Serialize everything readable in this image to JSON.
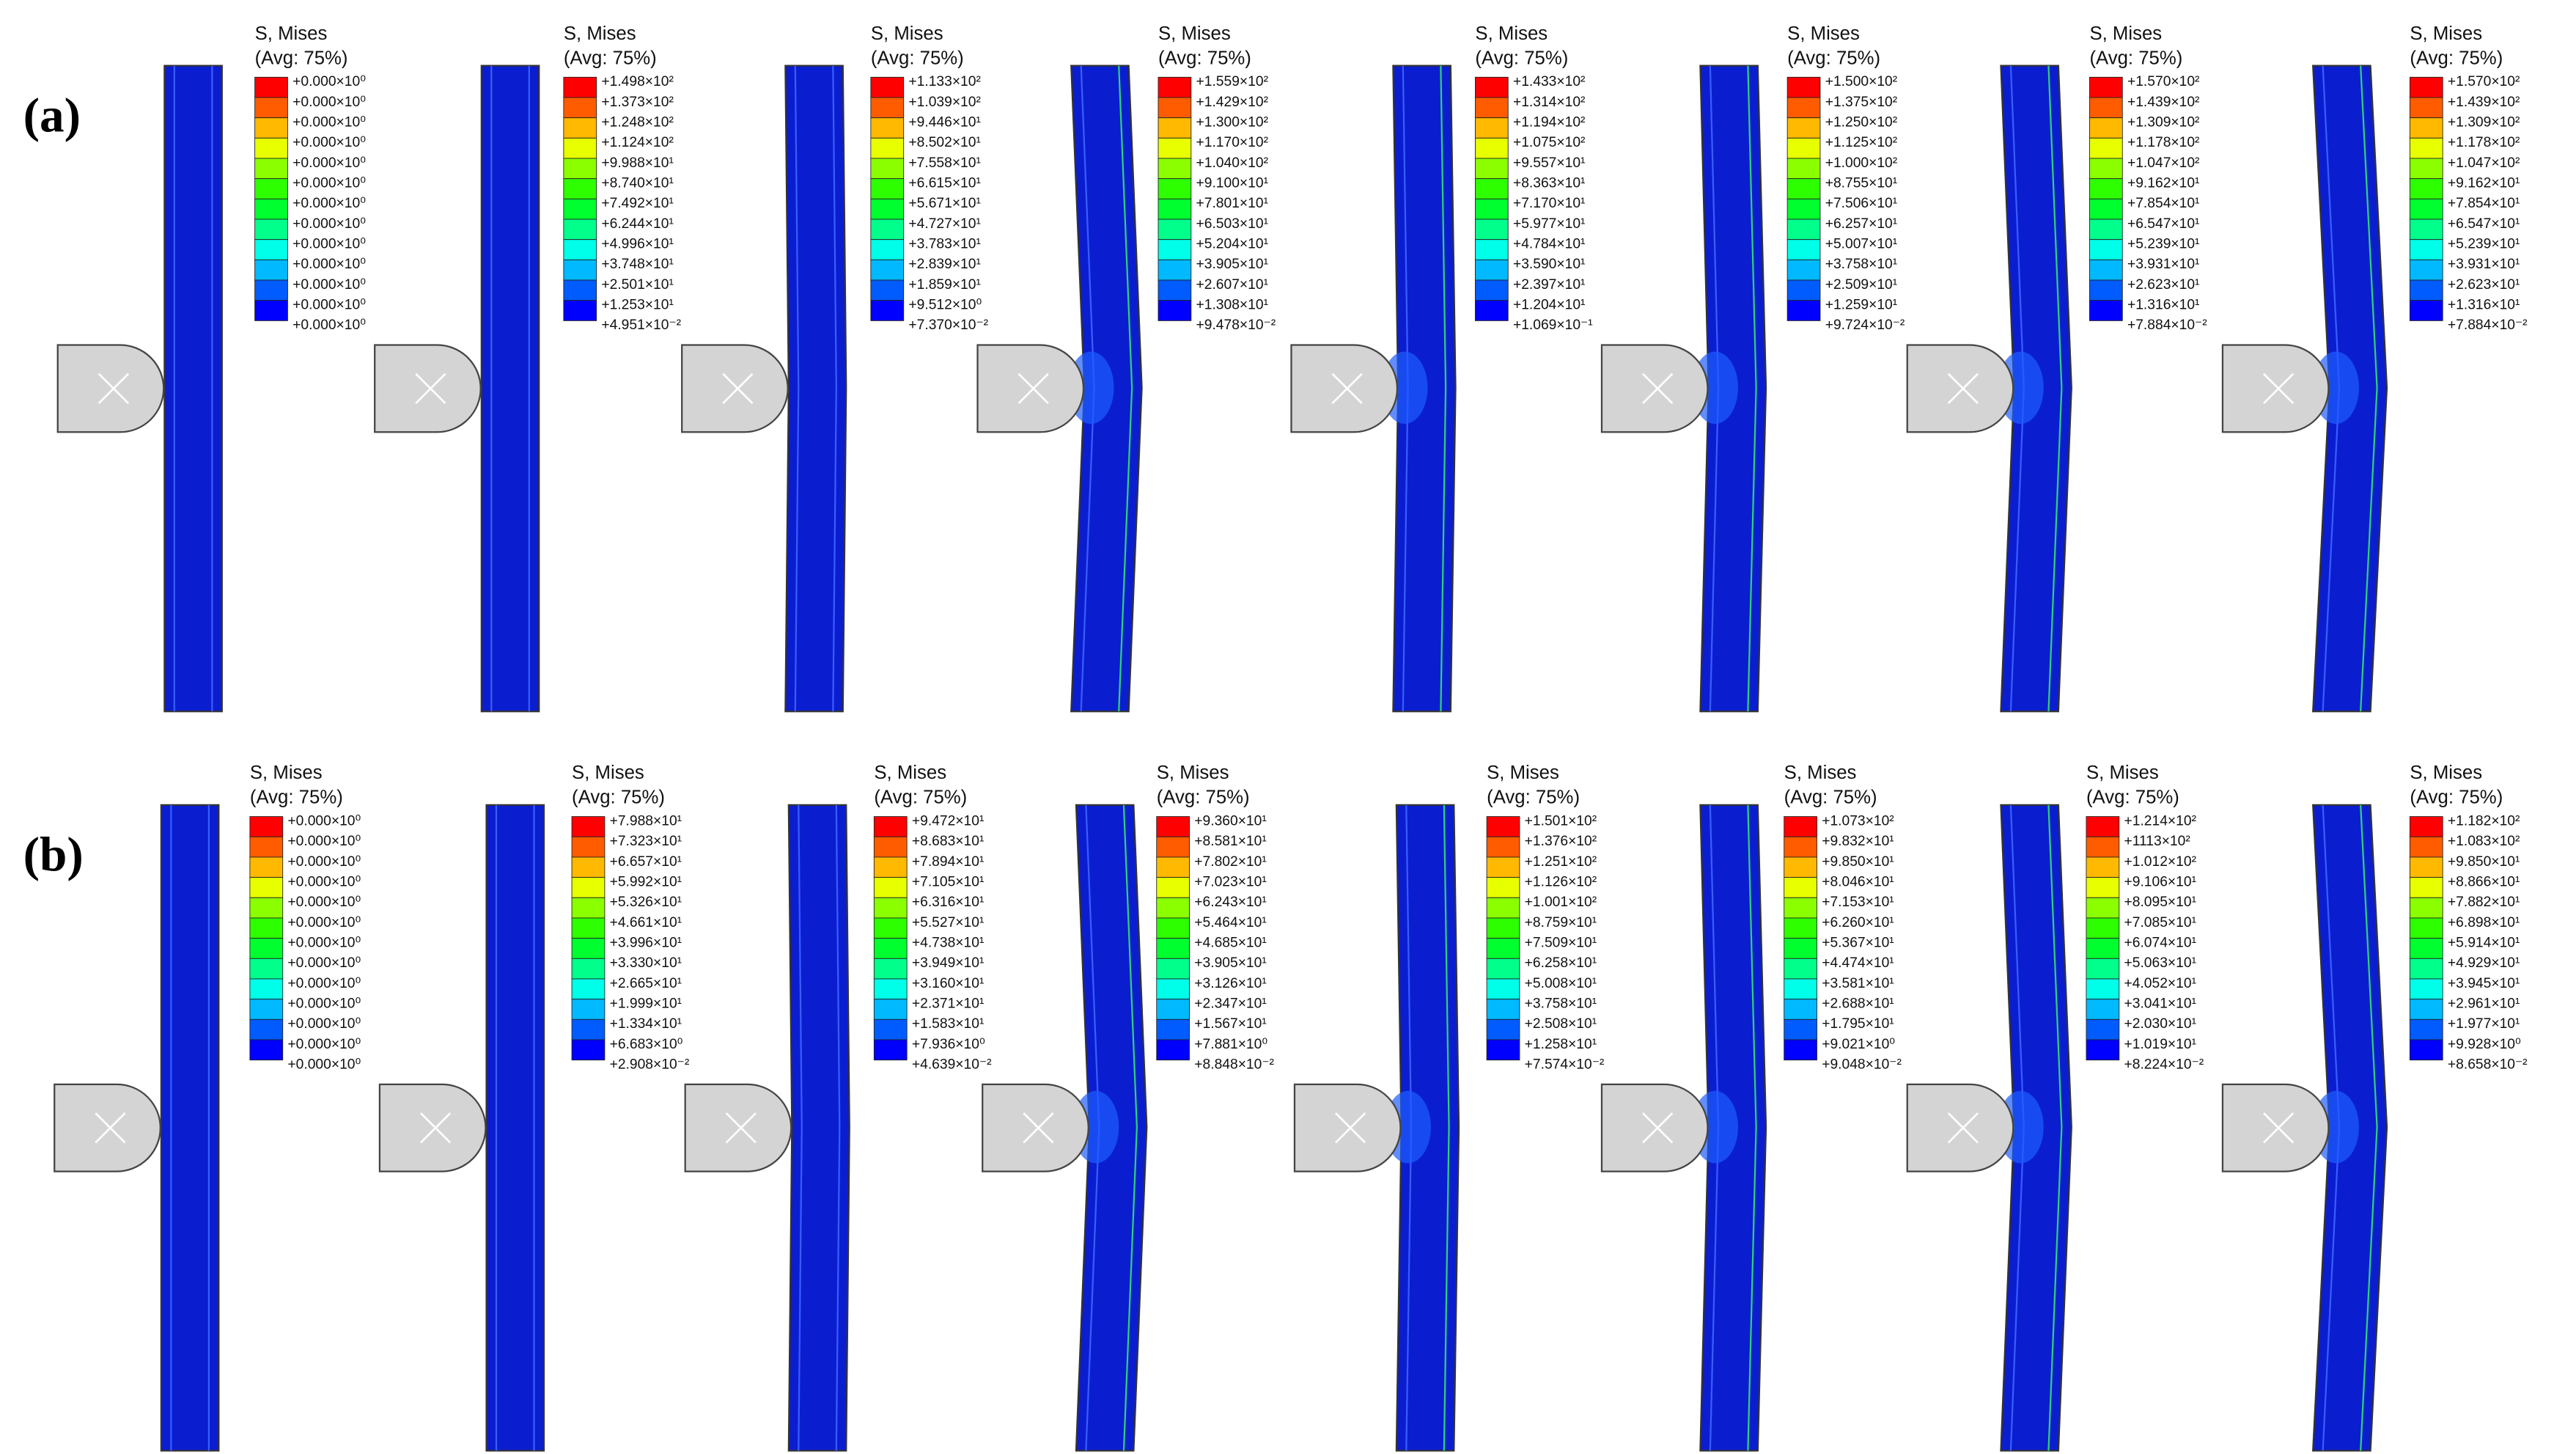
{
  "panels": [
    {
      "label": "(a)",
      "frames": [
        {
          "title": "S, Mises",
          "subtitle": "(Avg: 75%)",
          "values": [
            "+0.000×10⁰",
            "+0.000×10⁰",
            "+0.000×10⁰",
            "+0.000×10⁰",
            "+0.000×10⁰",
            "+0.000×10⁰",
            "+0.000×10⁰",
            "+0.000×10⁰",
            "+0.000×10⁰",
            "+0.000×10⁰",
            "+0.000×10⁰",
            "+0.000×10⁰",
            "+0.000×10⁰"
          ]
        },
        {
          "title": "S, Mises",
          "subtitle": "(Avg: 75%)",
          "values": [
            "+1.498×10²",
            "+1.373×10²",
            "+1.248×10²",
            "+1.124×10²",
            "+9.988×10¹",
            "+8.740×10¹",
            "+7.492×10¹",
            "+6.244×10¹",
            "+4.996×10¹",
            "+3.748×10¹",
            "+2.501×10¹",
            "+1.253×10¹",
            "+4.951×10⁻²"
          ]
        },
        {
          "title": "S, Mises",
          "subtitle": "(Avg: 75%)",
          "values": [
            "+1.133×10²",
            "+1.039×10²",
            "+9.446×10¹",
            "+8.502×10¹",
            "+7.558×10¹",
            "+6.615×10¹",
            "+5.671×10¹",
            "+4.727×10¹",
            "+3.783×10¹",
            "+2.839×10¹",
            "+1.859×10¹",
            "+9.512×10⁰",
            "+7.370×10⁻²"
          ]
        },
        {
          "title": "S, Mises",
          "subtitle": "(Avg: 75%)",
          "values": [
            "+1.559×10²",
            "+1.429×10²",
            "+1.300×10²",
            "+1.170×10²",
            "+1.040×10²",
            "+9.100×10¹",
            "+7.801×10¹",
            "+6.503×10¹",
            "+5.204×10¹",
            "+3.905×10¹",
            "+2.607×10¹",
            "+1.308×10¹",
            "+9.478×10⁻²"
          ]
        },
        {
          "title": "S, Mises",
          "subtitle": "(Avg: 75%)",
          "values": [
            "+1.433×10²",
            "+1.314×10²",
            "+1.194×10²",
            "+1.075×10²",
            "+9.557×10¹",
            "+8.363×10¹",
            "+7.170×10¹",
            "+5.977×10¹",
            "+4.784×10¹",
            "+3.590×10¹",
            "+2.397×10¹",
            "+1.204×10¹",
            "+1.069×10⁻¹"
          ]
        },
        {
          "title": "S, Mises",
          "subtitle": "(Avg: 75%)",
          "values": [
            "+1.500×10²",
            "+1.375×10²",
            "+1.250×10²",
            "+1.125×10²",
            "+1.000×10²",
            "+8.755×10¹",
            "+7.506×10¹",
            "+6.257×10¹",
            "+5.007×10¹",
            "+3.758×10¹",
            "+2.509×10¹",
            "+1.259×10¹",
            "+9.724×10⁻²"
          ]
        },
        {
          "title": "S, Mises",
          "subtitle": "(Avg: 75%)",
          "values": [
            "+1.570×10²",
            "+1.439×10²",
            "+1.309×10²",
            "+1.178×10²",
            "+1.047×10²",
            "+9.162×10¹",
            "+7.854×10¹",
            "+6.547×10¹",
            "+5.239×10¹",
            "+3.931×10¹",
            "+2.623×10¹",
            "+1.316×10¹",
            "+7.884×10⁻²"
          ]
        },
        {
          "title": "S, Mises",
          "subtitle": "(Avg: 75%)",
          "values": [
            "+1.570×10²",
            "+1.439×10²",
            "+1.309×10²",
            "+1.178×10²",
            "+1.047×10²",
            "+9.162×10¹",
            "+7.854×10¹",
            "+6.547×10¹",
            "+5.239×10¹",
            "+3.931×10¹",
            "+2.623×10¹",
            "+1.316×10¹",
            "+7.884×10⁻²"
          ]
        }
      ]
    },
    {
      "label": "(b)",
      "frames": [
        {
          "title": "S, Mises",
          "subtitle": "(Avg: 75%)",
          "values": [
            "+0.000×10⁰",
            "+0.000×10⁰",
            "+0.000×10⁰",
            "+0.000×10⁰",
            "+0.000×10⁰",
            "+0.000×10⁰",
            "+0.000×10⁰",
            "+0.000×10⁰",
            "+0.000×10⁰",
            "+0.000×10⁰",
            "+0.000×10⁰",
            "+0.000×10⁰",
            "+0.000×10⁰"
          ]
        },
        {
          "title": "S, Mises",
          "subtitle": "(Avg: 75%)",
          "values": [
            "+7.988×10¹",
            "+7.323×10¹",
            "+6.657×10¹",
            "+5.992×10¹",
            "+5.326×10¹",
            "+4.661×10¹",
            "+3.996×10¹",
            "+3.330×10¹",
            "+2.665×10¹",
            "+1.999×10¹",
            "+1.334×10¹",
            "+6.683×10⁰",
            "+2.908×10⁻²"
          ]
        },
        {
          "title": "S, Mises",
          "subtitle": "(Avg: 75%)",
          "values": [
            "+9.472×10¹",
            "+8.683×10¹",
            "+7.894×10¹",
            "+7.105×10¹",
            "+6.316×10¹",
            "+5.527×10¹",
            "+4.738×10¹",
            "+3.949×10¹",
            "+3.160×10¹",
            "+2.371×10¹",
            "+1.583×10¹",
            "+7.936×10⁰",
            "+4.639×10⁻²"
          ]
        },
        {
          "title": "S, Mises",
          "subtitle": "(Avg: 75%)",
          "values": [
            "+9.360×10¹",
            "+8.581×10¹",
            "+7.802×10¹",
            "+7.023×10¹",
            "+6.243×10¹",
            "+5.464×10¹",
            "+4.685×10¹",
            "+3.905×10¹",
            "+3.126×10¹",
            "+2.347×10¹",
            "+1.567×10¹",
            "+7.881×10⁰",
            "+8.848×10⁻²"
          ]
        },
        {
          "title": "S, Mises",
          "subtitle": "(Avg: 75%)",
          "values": [
            "+1.501×10²",
            "+1.376×10²",
            "+1.251×10²",
            "+1.126×10²",
            "+1.001×10²",
            "+8.759×10¹",
            "+7.509×10¹",
            "+6.258×10¹",
            "+5.008×10¹",
            "+3.758×10¹",
            "+2.508×10¹",
            "+1.258×10¹",
            "+7.574×10⁻²"
          ]
        },
        {
          "title": "S, Mises",
          "subtitle": "(Avg: 75%)",
          "values": [
            "+1.073×10²",
            "+9.832×10¹",
            "+9.850×10¹",
            "+8.046×10¹",
            "+7.153×10¹",
            "+6.260×10¹",
            "+5.367×10¹",
            "+4.474×10¹",
            "+3.581×10¹",
            "+2.688×10¹",
            "+1.795×10¹",
            "+9.021×10⁰",
            "+9.048×10⁻²"
          ]
        },
        {
          "title": "S, Mises",
          "subtitle": "(Avg: 75%)",
          "values": [
            "+1.214×10²",
            "+1113×10²",
            "+1.012×10²",
            "+9.106×10¹",
            "+8.095×10¹",
            "+7.085×10¹",
            "+6.074×10¹",
            "+5.063×10¹",
            "+4.052×10¹",
            "+3.041×10¹",
            "+2.030×10¹",
            "+1.019×10¹",
            "+8.224×10⁻²"
          ]
        },
        {
          "title": "S, Mises",
          "subtitle": "(Avg: 75%)",
          "values": [
            "+1.182×10²",
            "+1.083×10²",
            "+9.850×10¹",
            "+8.866×10¹",
            "+7.882×10¹",
            "+6.898×10¹",
            "+5.914×10¹",
            "+4.929×10¹",
            "+3.945×10¹",
            "+2.961×10¹",
            "+1.977×10¹",
            "+9.928×10⁰",
            "+8.658×10⁻²"
          ]
        }
      ]
    }
  ]
}
